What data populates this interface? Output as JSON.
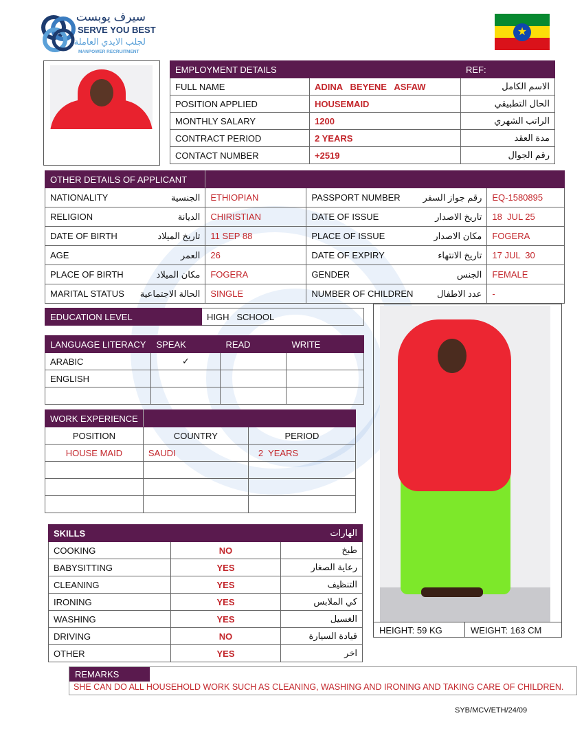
{
  "logo": {
    "arabic": "سيرف يوبست",
    "name": "SERVE YOU BEST",
    "arabic_sub": "لجلب الايدي العاملة",
    "sub": "MANPOWER RECRUITMENT"
  },
  "colors": {
    "header": "#5a1a4e",
    "value_text": "#c3262b",
    "flag": [
      "#078930",
      "#fcdd09",
      "#da121a",
      "#0f47af"
    ]
  },
  "employment": {
    "title": "EMPLOYMENT DETAILS",
    "ref": "REF:",
    "rows": [
      {
        "label": "FULL NAME",
        "value": "ADINA   BEYENE   ASFAW",
        "ar": "الاسم الكامل"
      },
      {
        "label": "POSITION APPLIED",
        "value": "HOUSEMAID",
        "ar": "الحال التطبيقي"
      },
      {
        "label": "MONTHLY SALARY",
        "value": "1200",
        "ar": "الراتب الشهري"
      },
      {
        "label": "CONTRACT PERIOD",
        "value": "2 YEARS",
        "ar": "مدة العقد"
      },
      {
        "label": "CONTACT NUMBER",
        "value": "+2519",
        "ar": "رقم الجوال"
      }
    ]
  },
  "other": {
    "title": "OTHER DETAILS OF APPLICANT",
    "rows": [
      {
        "l1": "NATIONALITY",
        "a1": "الجنسية",
        "v1": "ETHIOPIAN",
        "l2": "PASSPORT NUMBER",
        "a2": "رقم جواز السفر",
        "v2": "EQ-1580895"
      },
      {
        "l1": "RELIGION",
        "a1": "الديانة",
        "v1": "CHIRISTIAN",
        "l2": "DATE OF ISSUE",
        "a2": "تاريخ الاصدار",
        "v2": "18  JUL 25"
      },
      {
        "l1": "DATE OF BIRTH",
        "a1": "تاريخ الميلاد",
        "v1": "11 SEP 88",
        "l2": "PLACE OF ISSUE",
        "a2": "مكان الاصدار",
        "v2": "FOGERA"
      },
      {
        "l1": "AGE",
        "a1": "العمر",
        "v1": "26",
        "l2": "DATE OF EXPIRY",
        "a2": "تاريخ الانتهاء",
        "v2": "17 JUL  30"
      },
      {
        "l1": "PLACE OF BIRTH",
        "a1": "مكان الميلاد",
        "v1": "FOGERA",
        "l2": "GENDER",
        "a2": "الجنس",
        "v2": "FEMALE"
      },
      {
        "l1": "MARITAL STATUS",
        "a1": "الحالة الاجتماعية",
        "v1": "SINGLE",
        "l2": "NUMBER OF CHILDREN",
        "a2": "عدد الاطفال",
        "v2": "-"
      }
    ]
  },
  "education": {
    "label": "EDUCATION LEVEL",
    "value": "HIGH   SCHOOL"
  },
  "language": {
    "headers": [
      "LANGUAGE LITERACY",
      "SPEAK",
      "READ",
      "WRITE"
    ],
    "rows": [
      [
        "ARABIC",
        "✓",
        "",
        ""
      ],
      [
        "ENGLISH",
        "",
        "",
        ""
      ],
      [
        "",
        "",
        "",
        ""
      ]
    ]
  },
  "work": {
    "title": "WORK EXPERIENCE",
    "headers": [
      "POSITION",
      "COUNTRY",
      "PERIOD"
    ],
    "rows": [
      [
        "HOUSE MAID",
        "SAUDI",
        "2  YEARS"
      ],
      [
        "",
        "",
        ""
      ],
      [
        "",
        "",
        ""
      ],
      [
        "",
        "",
        ""
      ]
    ]
  },
  "skills": {
    "title": "SKILLS",
    "title_ar": "الهارات",
    "rows": [
      [
        "COOKING",
        "NO",
        "طبخ"
      ],
      [
        "BABYSITTING",
        "YES",
        "رعاية الصغار"
      ],
      [
        "CLEANING",
        "YES",
        "التنظيف"
      ],
      [
        "IRONING",
        "YES",
        "كي الملابس"
      ],
      [
        "WASHING",
        "YES",
        "الغسيل"
      ],
      [
        "DRIVING",
        "NO",
        "قيادة السيارة"
      ],
      [
        "OTHER",
        "YES",
        "اخر"
      ]
    ]
  },
  "measurements": {
    "height": "HEIGHT: 59 KG",
    "weight": "WEIGHT: 163 CM"
  },
  "remarks": {
    "title": "REMARKS",
    "text": "SHE CAN DO ALL HOUSEHOLD WORK SUCH AS CLEANING, WASHING AND IRONING AND TAKING CARE OF CHILDREN."
  },
  "doc_code": "SYB/MCV/ETH/24/09"
}
